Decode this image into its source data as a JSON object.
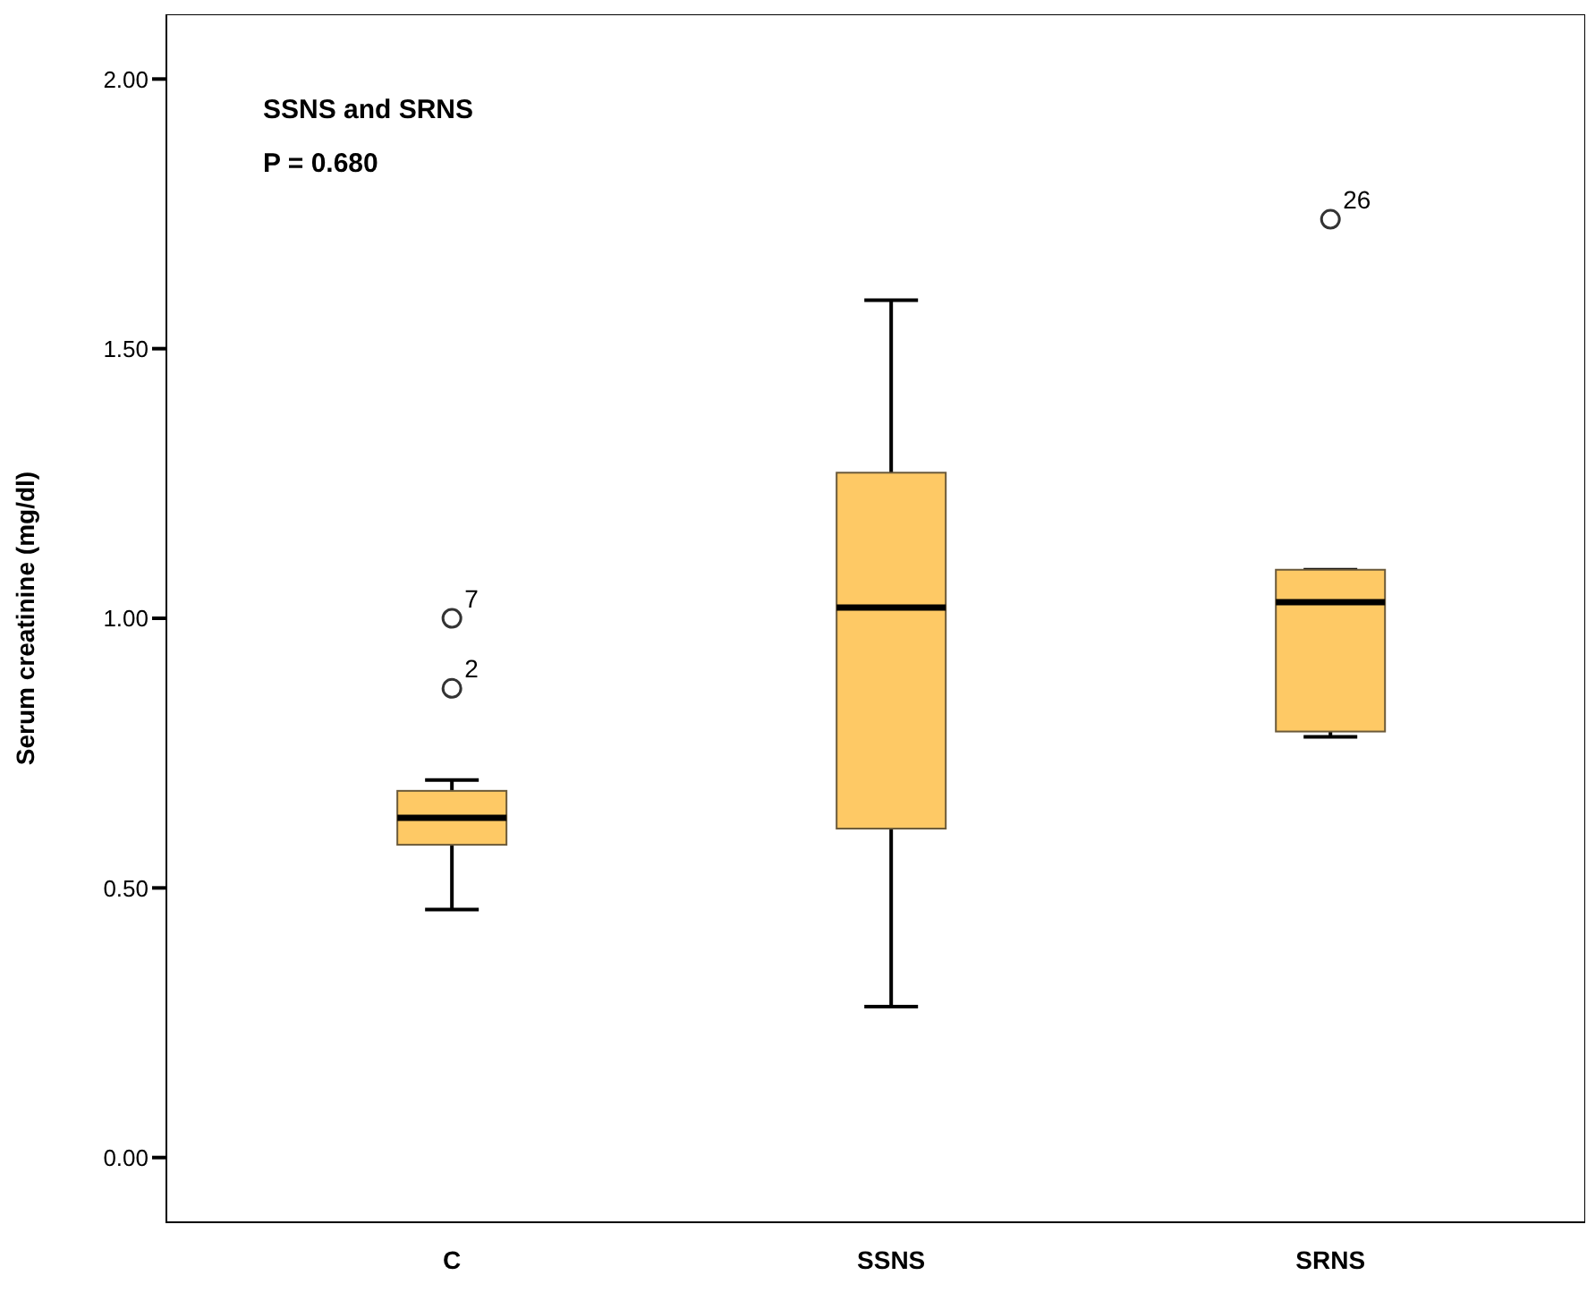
{
  "chart_data": {
    "type": "box",
    "ylabel": "Serum creatinine (mg/dl)",
    "categories": [
      "C",
      "SSNS",
      "SRNS"
    ],
    "color": "#fec965",
    "boxes": [
      {
        "low": 0.46,
        "q1": 0.58,
        "median": 0.63,
        "q3": 0.68,
        "high": 0.7,
        "outliers": [
          1.0,
          0.87
        ]
      },
      {
        "low": 0.28,
        "q1": 0.61,
        "median": 1.02,
        "q3": 1.27,
        "high": 1.59
      },
      {
        "low": 0.78,
        "q1": 0.79,
        "median": 1.03,
        "q3": 1.09,
        "high": 1.09,
        "outliers": [
          1.74
        ]
      }
    ],
    "ylim": [
      -0.12,
      2.12
    ],
    "yticks": [
      {
        "value": 0,
        "label": "0.00"
      },
      {
        "value": 0.5,
        "label": "0.50"
      },
      {
        "value": 1,
        "label": "1.00"
      },
      {
        "value": 1.5,
        "label": "1.50"
      },
      {
        "value": 2,
        "label": "2.00"
      }
    ],
    "marker": "circle",
    "annotations": [
      "SSNS and SRNS",
      "P = 0.680",
      "7",
      "2",
      "26"
    ]
  }
}
